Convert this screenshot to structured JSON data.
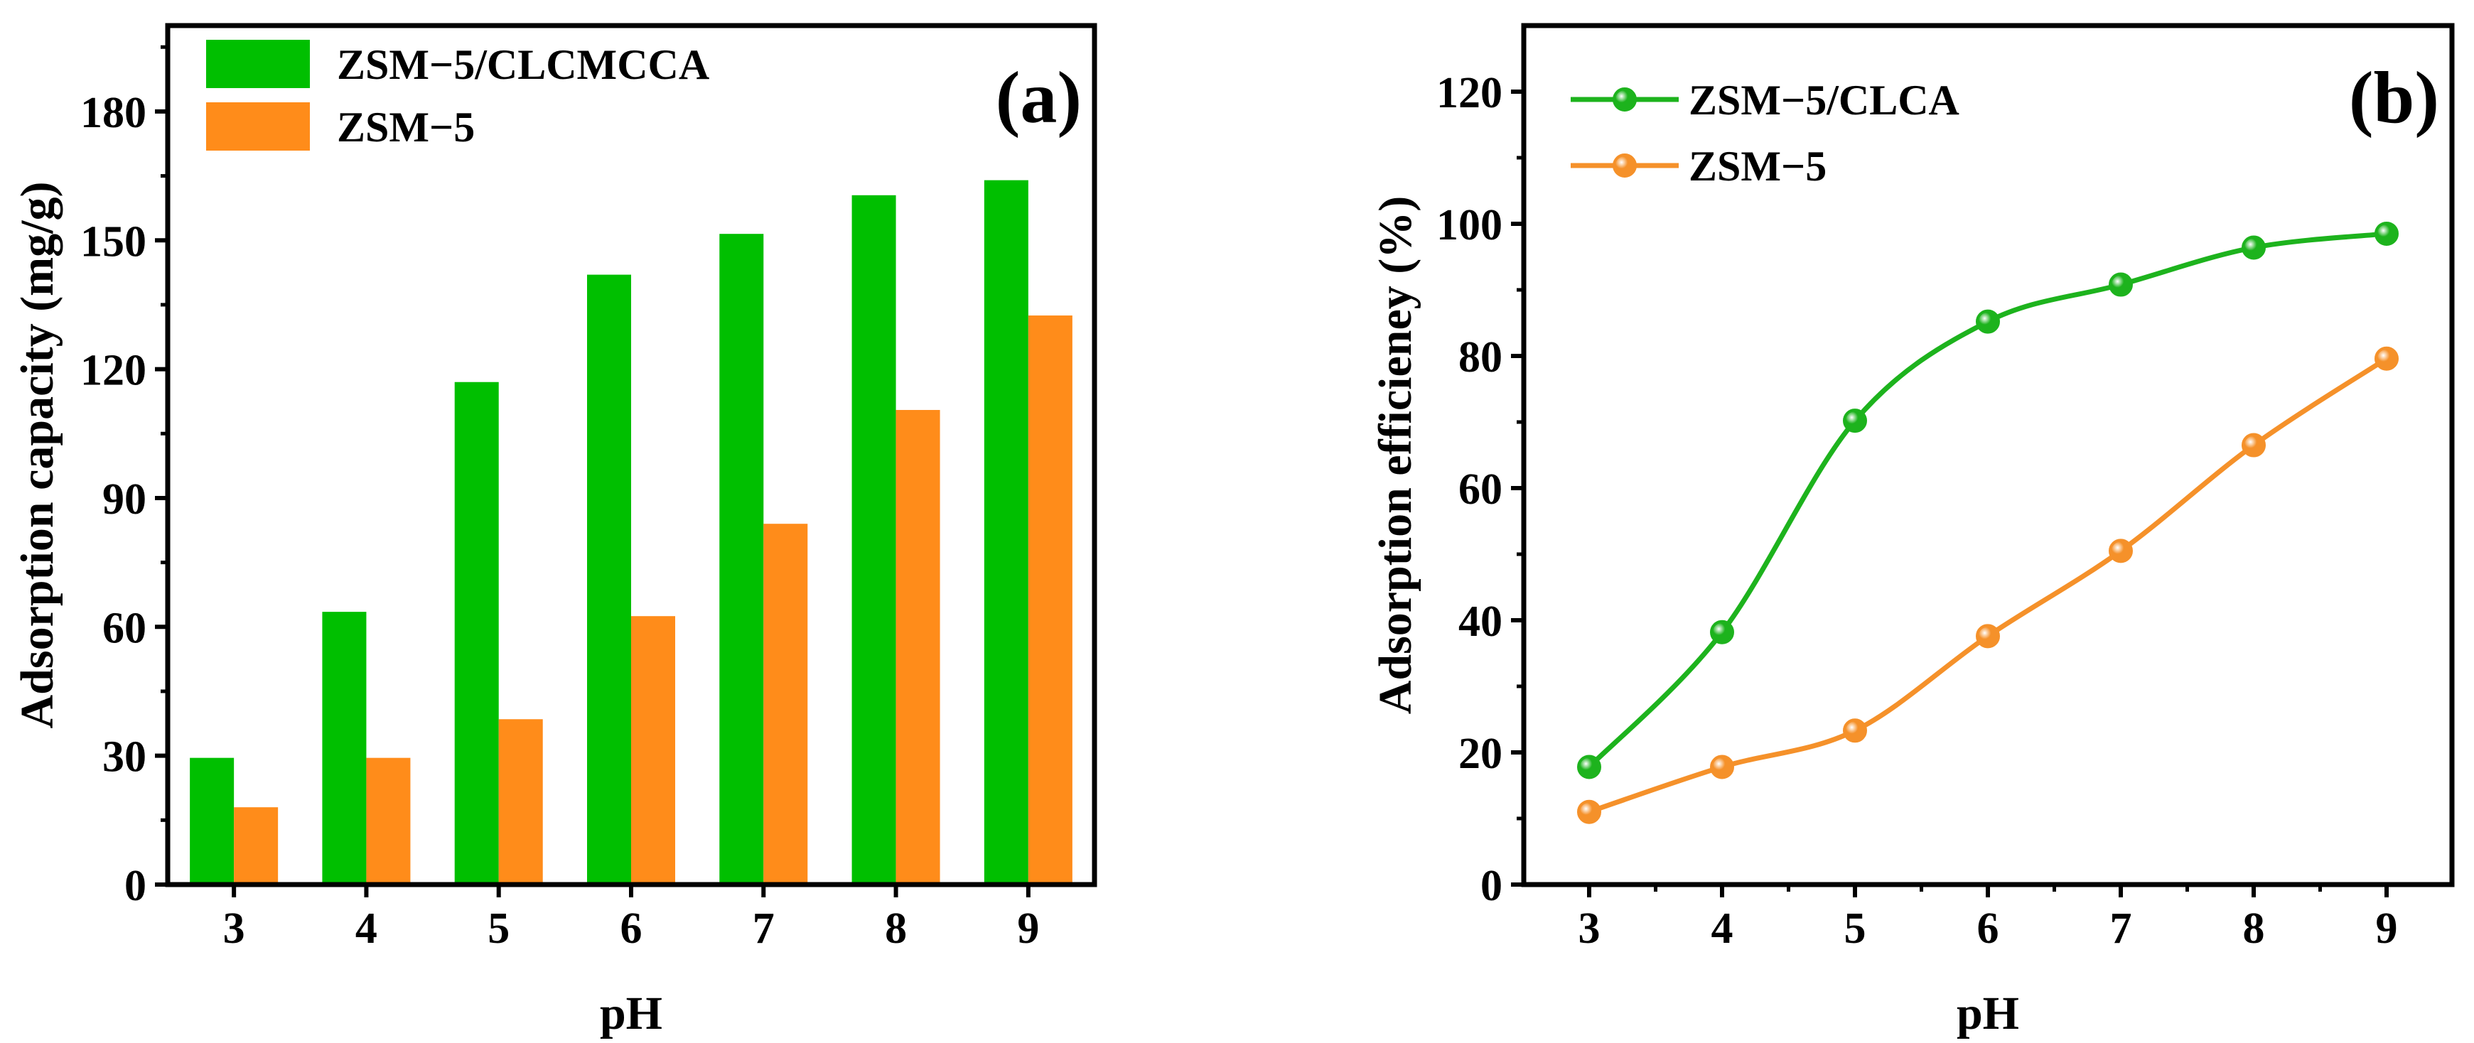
{
  "chart_data": [
    {
      "type": "bar",
      "panel_label": "(a)",
      "title": "",
      "xlabel": "pH",
      "ylabel": "Adsorption capacity (mg/g)",
      "categories": [
        "3",
        "4",
        "5",
        "6",
        "7",
        "8",
        "9"
      ],
      "ylim": [
        0,
        200
      ],
      "yticks": [
        0,
        30,
        60,
        90,
        120,
        150,
        180
      ],
      "ytick_labels": [
        "0",
        "30",
        "60",
        "90",
        "120",
        "150",
        "180"
      ],
      "legend_position": "top-left",
      "series": [
        {
          "name": "ZSM−5/CLCMCCA",
          "color": "#00bf00",
          "values": [
            29.5,
            63.5,
            117,
            142,
            151.5,
            160.5,
            164
          ]
        },
        {
          "name": "ZSM−5",
          "color": "#ff8c1a",
          "values": [
            18,
            29.5,
            38.5,
            62.5,
            84,
            110.5,
            132.5
          ]
        }
      ]
    },
    {
      "type": "line",
      "panel_label": "(b)",
      "title": "",
      "xlabel": "pH",
      "ylabel": "Adsorption efficieney (%)",
      "x": [
        3,
        4,
        5,
        6,
        7,
        8,
        9
      ],
      "xtick_labels": [
        "3",
        "4",
        "5",
        "6",
        "7",
        "8",
        "9"
      ],
      "ylim": [
        0,
        130
      ],
      "yticks": [
        0,
        20,
        40,
        60,
        80,
        100,
        120
      ],
      "ytick_labels": [
        "0",
        "20",
        "40",
        "60",
        "80",
        "100",
        "120"
      ],
      "legend_position": "top-left",
      "series": [
        {
          "name": "ZSM−5/CLCA",
          "color": "#1db31d",
          "values": [
            17.8,
            38.2,
            70.2,
            85.2,
            90.8,
            96.4,
            98.5
          ]
        },
        {
          "name": "ZSM−5",
          "color": "#f5912a",
          "values": [
            11,
            17.8,
            23.3,
            37.6,
            50.5,
            66.5,
            79.6
          ]
        }
      ]
    }
  ]
}
